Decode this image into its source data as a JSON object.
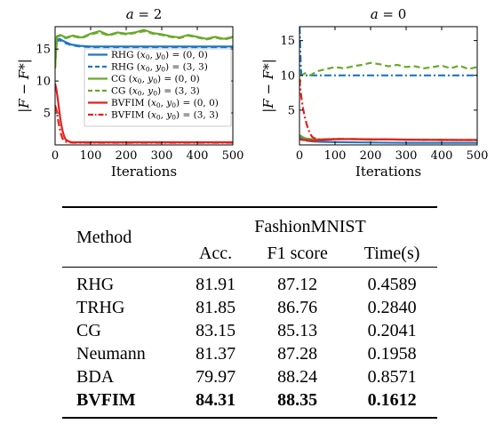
{
  "chart_data": [
    {
      "type": "line",
      "title": "a = 2",
      "title_var": "a",
      "title_val": "2",
      "xlabel": "Iterations",
      "ylabel": "|F − F*|",
      "xlim": [
        0,
        500
      ],
      "ylim": [
        0,
        18.5
      ],
      "xticks": [
        0,
        100,
        200,
        300,
        400,
        500
      ],
      "yticks": [
        5,
        10,
        15
      ],
      "grid": false,
      "legend": "right",
      "series": [
        {
          "name": "RHG (x0, y0) = (0, 0)",
          "legend_method": "RHG",
          "legend_init": "(0, 0)",
          "color": "#1f77c4",
          "dash": "solid",
          "x": [
            0,
            5,
            12,
            25,
            45,
            70,
            100,
            200,
            300,
            400,
            500
          ],
          "y": [
            13.0,
            16.4,
            16.6,
            16.2,
            15.7,
            15.5,
            15.4,
            15.4,
            15.4,
            15.4,
            15.4
          ]
        },
        {
          "name": "RHG (x0, y0) = (3, 3)",
          "legend_method": "RHG",
          "legend_init": "(3, 3)",
          "color": "#1f77c4",
          "dash": "dashed",
          "x": [
            0,
            5,
            12,
            25,
            45,
            70,
            100,
            200,
            300,
            400,
            500
          ],
          "y": [
            13.0,
            16.2,
            16.4,
            16.0,
            15.6,
            15.4,
            15.3,
            15.3,
            15.3,
            15.3,
            15.3
          ]
        },
        {
          "name": "CG (x0, y0) = (0, 0)",
          "legend_method": "CG",
          "legend_init": "(0, 0)",
          "color": "#6aaa2a",
          "dash": "solid",
          "x": [
            0,
            5,
            15,
            30,
            50,
            75,
            100,
            125,
            150,
            175,
            200,
            225,
            250,
            275,
            300,
            325,
            350,
            375,
            400,
            425,
            450,
            475,
            500
          ],
          "y": [
            12.0,
            17.0,
            17.2,
            16.8,
            17.1,
            16.8,
            17.4,
            17.8,
            17.2,
            17.6,
            17.4,
            17.6,
            18.0,
            17.5,
            17.3,
            17.0,
            16.8,
            17.2,
            16.9,
            16.6,
            16.9,
            16.6,
            16.9
          ]
        },
        {
          "name": "CG (x0, y0) = (3, 3)",
          "legend_method": "CG",
          "legend_init": "(3, 3)",
          "color": "#6aaa2a",
          "dash": "dashed",
          "x": [
            0,
            5,
            15,
            30,
            50,
            75,
            100,
            125,
            150,
            175,
            200,
            225,
            250,
            275,
            300,
            325,
            350,
            375,
            400,
            425,
            450,
            475,
            500
          ],
          "y": [
            12.0,
            16.9,
            17.1,
            16.7,
            17.0,
            16.7,
            17.3,
            17.6,
            17.1,
            17.5,
            17.3,
            17.5,
            17.8,
            17.4,
            17.2,
            16.9,
            16.7,
            17.1,
            16.8,
            16.5,
            16.8,
            16.5,
            16.8
          ]
        },
        {
          "name": "BVFIM (x0, y0) = (0, 0)",
          "legend_method": "BVFIM",
          "legend_init": "(0, 0)",
          "color": "#e8201c",
          "dash": "solid",
          "x": [
            0,
            4,
            8,
            12,
            16,
            20,
            25,
            30,
            40,
            50,
            70,
            100,
            200,
            300,
            400,
            500
          ],
          "y": [
            9.6,
            8.6,
            7.0,
            5.2,
            3.6,
            2.4,
            1.4,
            0.8,
            0.5,
            0.4,
            0.4,
            0.4,
            0.4,
            0.4,
            0.4,
            0.4
          ]
        },
        {
          "name": "BVFIM (x0, y0) = (3, 3)",
          "legend_method": "BVFIM",
          "legend_init": "(3, 3)",
          "color": "#e8201c",
          "dash": "dashdot",
          "x": [
            0,
            4,
            8,
            12,
            16,
            20,
            25,
            30,
            40,
            50,
            70,
            100,
            200,
            300,
            400,
            500
          ],
          "y": [
            6.2,
            5.4,
            4.0,
            2.8,
            1.8,
            1.1,
            0.7,
            0.5,
            0.4,
            0.35,
            0.35,
            0.35,
            0.35,
            0.35,
            0.35,
            0.35
          ]
        }
      ]
    },
    {
      "type": "line",
      "title": "a = 0",
      "title_var": "a",
      "title_val": "0",
      "xlabel": "Iterations",
      "ylabel": "|F − F*|",
      "xlim": [
        0,
        500
      ],
      "ylim": [
        0,
        17
      ],
      "xticks": [
        0,
        100,
        200,
        300,
        400,
        500
      ],
      "yticks": [
        5,
        10,
        15
      ],
      "grid": false,
      "legend": "none",
      "series": [
        {
          "name": "RHG (x0, y0) = (0, 0)",
          "color": "#1f77c4",
          "dash": "solid",
          "x": [
            0,
            10,
            20,
            40,
            60,
            100,
            200,
            300,
            400,
            500
          ],
          "y": [
            1.2,
            0.9,
            0.6,
            0.5,
            0.45,
            0.4,
            0.35,
            0.3,
            0.3,
            0.3
          ]
        },
        {
          "name": "RHG (x0, y0) = (3, 3)",
          "color": "#1f77c4",
          "dash": "dashdot",
          "x": [
            0,
            1,
            2,
            3,
            4,
            5,
            8,
            15,
            30,
            100,
            200,
            300,
            400,
            500
          ],
          "y": [
            17.0,
            16.0,
            14.0,
            12.5,
            11.0,
            10.2,
            10.0,
            10.0,
            10.0,
            10.0,
            10.0,
            10.0,
            10.0,
            10.0
          ]
        },
        {
          "name": "CG (x0, y0) = (0, 0)",
          "color": "#6aaa2a",
          "dash": "solid",
          "x": [
            0,
            10,
            20,
            40,
            60,
            100,
            150,
            200,
            250,
            300,
            350,
            400,
            450,
            500
          ],
          "y": [
            1.4,
            1.1,
            0.9,
            0.8,
            0.8,
            0.85,
            0.8,
            0.75,
            0.8,
            0.75,
            0.7,
            0.75,
            0.7,
            0.7
          ]
        },
        {
          "name": "CG (x0, y0) = (3, 3)",
          "color": "#6aaa2a",
          "dash": "dashed",
          "x": [
            0,
            5,
            15,
            30,
            50,
            75,
            100,
            125,
            150,
            175,
            200,
            225,
            250,
            275,
            300,
            325,
            350,
            375,
            400,
            425,
            450,
            475,
            500
          ],
          "y": [
            8.5,
            10.0,
            10.3,
            10.0,
            10.6,
            10.9,
            11.2,
            11.0,
            11.3,
            11.5,
            11.8,
            11.6,
            11.3,
            11.5,
            11.2,
            11.3,
            11.0,
            11.2,
            11.4,
            11.0,
            11.4,
            10.9,
            11.2
          ]
        },
        {
          "name": "BVFIM (x0, y0) = (0, 0)",
          "color": "#e8201c",
          "dash": "solid",
          "x": [
            0,
            10,
            20,
            30,
            40,
            50,
            60,
            80,
            100,
            150,
            200,
            300,
            400,
            500
          ],
          "y": [
            0.8,
            0.7,
            0.7,
            0.65,
            0.6,
            0.65,
            0.7,
            0.75,
            0.8,
            0.85,
            0.8,
            0.75,
            0.7,
            0.7
          ]
        },
        {
          "name": "BVFIM (x0, y0) = (3, 3)",
          "color": "#e8201c",
          "dash": "dashdot",
          "x": [
            0,
            1,
            3,
            6,
            10,
            15,
            20,
            25,
            30,
            35,
            40,
            50,
            60,
            80,
            100,
            200,
            300,
            400,
            500
          ],
          "y": [
            9.5,
            8.8,
            7.8,
            6.6,
            5.2,
            4.0,
            3.0,
            2.2,
            1.6,
            1.2,
            1.0,
            0.8,
            0.75,
            0.8,
            0.85,
            0.8,
            0.75,
            0.7,
            0.7
          ]
        }
      ]
    }
  ],
  "table": {
    "group_header_label": "Method",
    "dataset": "FashionMNIST",
    "columns": [
      "Acc.",
      "F1 score",
      "Time(s)"
    ],
    "rows": [
      {
        "method": "RHG",
        "values": [
          "81.91",
          "87.12",
          "0.4589"
        ],
        "bold": false
      },
      {
        "method": "TRHG",
        "values": [
          "81.85",
          "86.76",
          "0.2840"
        ],
        "bold": false
      },
      {
        "method": "CG",
        "values": [
          "83.15",
          "85.13",
          "0.2041"
        ],
        "bold": false
      },
      {
        "method": "Neumann",
        "values": [
          "81.37",
          "87.28",
          "0.1958"
        ],
        "bold": false
      },
      {
        "method": "BDA",
        "values": [
          "79.97",
          "88.24",
          "0.8571"
        ],
        "bold": false
      },
      {
        "method": "BVFIM",
        "values": [
          "84.31",
          "88.35",
          "0.1612"
        ],
        "bold": true
      }
    ]
  }
}
